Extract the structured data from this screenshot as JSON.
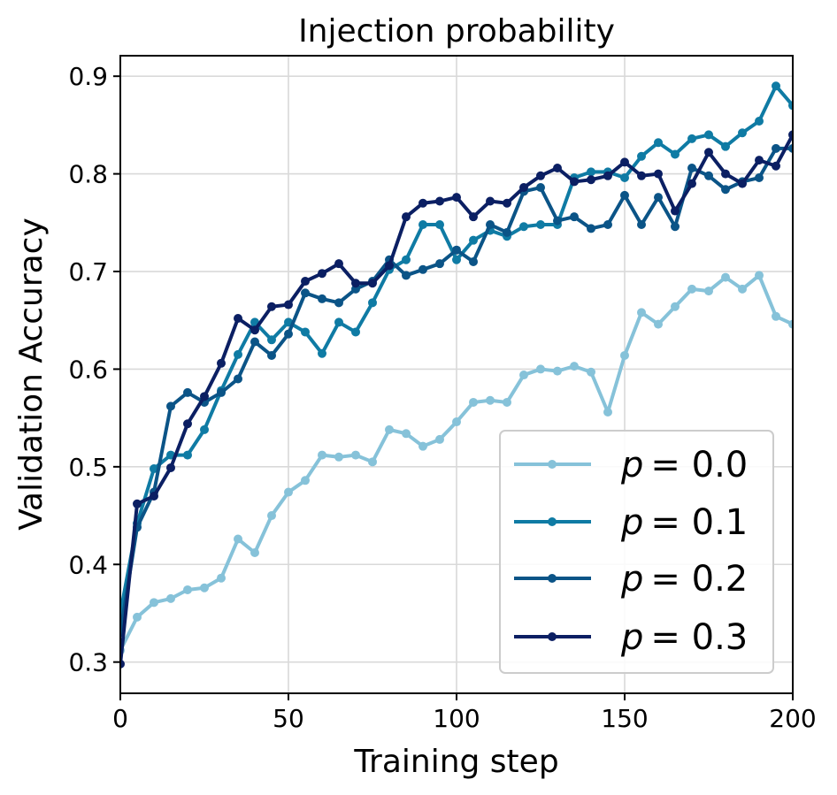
{
  "chart_data": {
    "type": "line",
    "title": "Injection probability",
    "xlabel": "Training step",
    "ylabel": "Validation Accuracy",
    "xlim": [
      0,
      200
    ],
    "ylim": [
      0.268,
      0.921
    ],
    "xticks": [
      0,
      50,
      100,
      150,
      200
    ],
    "xtick_labels": [
      "0",
      "50",
      "100",
      "150",
      "200"
    ],
    "yticks": [
      0.3,
      0.4,
      0.5,
      0.6,
      0.7,
      0.8,
      0.9
    ],
    "ytick_labels": [
      "0.3",
      "0.4",
      "0.5",
      "0.6",
      "0.7",
      "0.8",
      "0.9"
    ],
    "grid": true,
    "legend_position": "lower-right",
    "x": [
      0,
      5,
      10,
      15,
      20,
      25,
      30,
      35,
      40,
      45,
      50,
      55,
      60,
      65,
      70,
      75,
      80,
      85,
      90,
      95,
      100,
      105,
      110,
      115,
      120,
      125,
      130,
      135,
      140,
      145,
      150,
      155,
      160,
      165,
      170,
      175,
      180,
      185,
      190,
      195,
      200
    ],
    "series": [
      {
        "name": "p = 0.0",
        "legend_var": "p",
        "legend_value": "= 0.0",
        "color": "#86c2d9",
        "values": [
          0.312,
          0.346,
          0.361,
          0.365,
          0.374,
          0.376,
          0.386,
          0.426,
          0.412,
          0.45,
          0.474,
          0.486,
          0.512,
          0.51,
          0.512,
          0.505,
          0.538,
          0.534,
          0.521,
          0.528,
          0.546,
          0.566,
          0.568,
          0.566,
          0.594,
          0.6,
          0.598,
          0.603,
          0.597,
          0.556,
          0.614,
          0.658,
          0.646,
          0.664,
          0.682,
          0.68,
          0.694,
          0.682,
          0.696,
          0.654,
          0.646
        ]
      },
      {
        "name": "p = 0.1",
        "legend_var": "p",
        "legend_value": "= 0.1",
        "color": "#0f7ba4",
        "values": [
          0.35,
          0.442,
          0.498,
          0.512,
          0.512,
          0.538,
          0.578,
          0.615,
          0.648,
          0.63,
          0.648,
          0.638,
          0.616,
          0.648,
          0.638,
          0.668,
          0.702,
          0.712,
          0.748,
          0.748,
          0.712,
          0.732,
          0.742,
          0.736,
          0.746,
          0.748,
          0.748,
          0.796,
          0.802,
          0.802,
          0.796,
          0.818,
          0.832,
          0.82,
          0.836,
          0.84,
          0.828,
          0.842,
          0.854,
          0.89,
          0.87
        ]
      },
      {
        "name": "p = 0.2",
        "legend_var": "p",
        "legend_value": "= 0.2",
        "color": "#0b5487",
        "values": [
          0.33,
          0.438,
          0.474,
          0.562,
          0.576,
          0.566,
          0.576,
          0.59,
          0.628,
          0.614,
          0.636,
          0.678,
          0.672,
          0.668,
          0.682,
          0.69,
          0.712,
          0.696,
          0.702,
          0.708,
          0.722,
          0.71,
          0.748,
          0.74,
          0.782,
          0.786,
          0.752,
          0.756,
          0.744,
          0.748,
          0.778,
          0.748,
          0.776,
          0.746,
          0.806,
          0.798,
          0.784,
          0.792,
          0.796,
          0.826,
          0.826
        ]
      },
      {
        "name": "p = 0.3",
        "legend_var": "p",
        "legend_value": "= 0.3",
        "color": "#0b1f63",
        "values": [
          0.298,
          0.462,
          0.47,
          0.499,
          0.544,
          0.572,
          0.606,
          0.652,
          0.64,
          0.664,
          0.666,
          0.69,
          0.698,
          0.708,
          0.688,
          0.688,
          0.706,
          0.756,
          0.77,
          0.772,
          0.776,
          0.756,
          0.772,
          0.77,
          0.786,
          0.798,
          0.806,
          0.792,
          0.794,
          0.798,
          0.812,
          0.798,
          0.8,
          0.762,
          0.79,
          0.822,
          0.8,
          0.79,
          0.814,
          0.808,
          0.84
        ]
      }
    ]
  }
}
